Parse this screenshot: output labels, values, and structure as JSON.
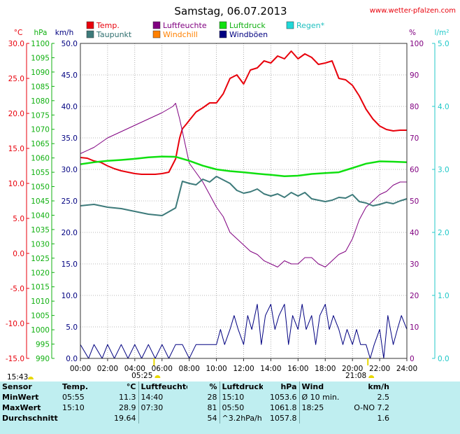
{
  "header": {
    "title": "Samstag, 06.07.2013",
    "site": "www.wetter-pfalzen.com"
  },
  "legend": [
    {
      "label": "Temp.",
      "color": "#e8000b"
    },
    {
      "label": "Luftfeuchte",
      "color": "#800080"
    },
    {
      "label": "Luftdruck",
      "color": "#10e010"
    },
    {
      "label": "Regen*",
      "color": "#20d8d8"
    },
    {
      "label": "Taupunkt",
      "color": "#3d7a7a"
    },
    {
      "label": "Windchill",
      "color": "#ff8000"
    },
    {
      "label": "Windböen",
      "color": "#000080"
    }
  ],
  "axes": {
    "temp": {
      "unit": "°C",
      "color": "#e8000b",
      "ticks": [
        "30.0",
        "25.0",
        "20.0",
        "15.0",
        "10.0",
        "5.0",
        "0.0",
        "-5.0",
        "-10.0",
        "-15.0"
      ]
    },
    "press": {
      "unit": "hPa",
      "color": "#10b010",
      "ticks": [
        "1100",
        "1095",
        "1090",
        "1085",
        "1080",
        "1075",
        "1070",
        "1065",
        "1060",
        "1055",
        "1050",
        "1045",
        "1040",
        "1035",
        "1030",
        "1025",
        "1020",
        "1015",
        "1010",
        "1005",
        "1000",
        "995",
        "990"
      ]
    },
    "wind": {
      "unit": "km/h",
      "color": "#000080",
      "ticks": [
        "50.0",
        "45.0",
        "40.0",
        "35.0",
        "30.0",
        "25.0",
        "20.0",
        "15.0",
        "10.0",
        "5.0",
        "0.0"
      ]
    },
    "hum": {
      "unit": "%",
      "color": "#800080",
      "ticks": [
        "100",
        "90",
        "80",
        "70",
        "60",
        "50",
        "40",
        "30",
        "20",
        "10",
        "0"
      ]
    },
    "rain": {
      "unit": "l/m²",
      "color": "#20c8c8",
      "ticks": [
        "5.0",
        "4.0",
        "3.0",
        "2.0",
        "1.0",
        "0.0"
      ]
    },
    "time": {
      "ticks": [
        "00:00",
        "02:00",
        "04:00",
        "06:00",
        "08:00",
        "10:00",
        "12:00",
        "14:00",
        "16:00",
        "18:00",
        "20:00",
        "22:00",
        "24:00"
      ]
    }
  },
  "sun": {
    "sunrise": "05:25",
    "sunset": "21:08",
    "marker_left": "15:43"
  },
  "chart_data": {
    "type": "line",
    "title": "Samstag, 06.07.2013",
    "x_unit": "hours",
    "xlim": [
      0,
      24
    ],
    "series": [
      {
        "name": "Temp.",
        "axis": "temp",
        "ylim": [
          -15,
          30
        ],
        "x": [
          0,
          0.5,
          1,
          1.5,
          2,
          2.5,
          3,
          3.5,
          4,
          4.5,
          5,
          5.5,
          6,
          6.5,
          7,
          7.3,
          7.5,
          7.8,
          8,
          8.5,
          9,
          9.5,
          10,
          10.5,
          11,
          11.5,
          12,
          12.5,
          13,
          13.5,
          14,
          14.5,
          15,
          15.5,
          16,
          16.5,
          17,
          17.5,
          18,
          18.5,
          19,
          19.5,
          20,
          20.5,
          21,
          21.5,
          22,
          22.5,
          23,
          23.5,
          24
        ],
        "values": [
          13.7,
          13.6,
          13.2,
          13.0,
          12.5,
          12.1,
          11.8,
          11.6,
          11.4,
          11.3,
          11.3,
          11.3,
          11.4,
          11.6,
          13.5,
          16.5,
          17.8,
          18.5,
          19.0,
          20.2,
          20.8,
          21.5,
          21.5,
          22.8,
          25.0,
          25.5,
          24.2,
          26.2,
          26.5,
          27.5,
          27.2,
          28.2,
          27.8,
          28.9,
          27.8,
          28.5,
          28.0,
          27.0,
          27.2,
          27.5,
          25.0,
          24.8,
          24.0,
          22.5,
          20.6,
          19.2,
          18.2,
          17.7,
          17.5,
          17.6,
          17.6
        ]
      },
      {
        "name": "Luftfeuchte",
        "axis": "hum",
        "ylim": [
          0,
          100
        ],
        "x": [
          0,
          1,
          2,
          3,
          4,
          5,
          6,
          6.8,
          7,
          7.3,
          7.6,
          8,
          8.5,
          9,
          9.5,
          10,
          10.5,
          11,
          11.5,
          12,
          12.5,
          13,
          13.5,
          14,
          14.5,
          15,
          15.5,
          16,
          16.5,
          17,
          17.5,
          18,
          18.5,
          19,
          19.5,
          20,
          20.5,
          21,
          21.5,
          22,
          22.5,
          23,
          23.5,
          24
        ],
        "values": [
          65,
          67,
          70,
          72,
          74,
          76,
          78,
          80,
          81,
          76,
          70,
          62,
          59,
          56,
          52,
          48,
          45,
          40,
          38,
          36,
          34,
          33,
          31,
          30,
          29,
          31,
          30,
          30,
          32,
          32,
          30,
          29,
          31,
          33,
          34,
          38,
          44,
          48,
          50,
          52,
          53,
          55,
          56,
          56
        ]
      },
      {
        "name": "Taupunkt",
        "axis": "temp",
        "ylim": [
          -15,
          30
        ],
        "x": [
          0,
          1,
          2,
          3,
          4,
          5,
          6,
          7,
          7.5,
          8,
          8.5,
          9,
          9.5,
          10,
          10.5,
          11,
          11.5,
          12,
          12.5,
          13,
          13.5,
          14,
          14.5,
          15,
          15.5,
          16,
          16.5,
          17,
          17.5,
          18,
          18.5,
          19,
          19.5,
          20,
          20.5,
          21,
          21.5,
          22,
          22.5,
          23,
          23.5,
          24
        ],
        "values": [
          6.8,
          7.0,
          6.6,
          6.4,
          6.0,
          5.6,
          5.4,
          6.5,
          10.3,
          10.0,
          9.8,
          10.6,
          10.2,
          11.0,
          10.5,
          10.0,
          9.0,
          8.6,
          8.8,
          9.2,
          8.5,
          8.2,
          8.5,
          8.0,
          8.7,
          8.2,
          8.7,
          7.8,
          7.6,
          7.4,
          7.6,
          8.0,
          7.9,
          8.4,
          7.4,
          7.2,
          6.8,
          7.0,
          7.3,
          7.1,
          7.5,
          7.8
        ]
      },
      {
        "name": "Luftdruck",
        "axis": "press",
        "ylim": [
          990,
          1100
        ],
        "x": [
          0,
          1,
          2,
          3,
          4,
          5,
          6,
          7,
          8,
          9,
          10,
          11,
          12,
          13,
          14,
          15,
          16,
          17,
          18,
          19,
          20,
          21,
          22,
          23,
          24
        ],
        "values": [
          1057.8,
          1058.5,
          1059.0,
          1059.3,
          1059.7,
          1060.2,
          1060.5,
          1060.4,
          1059.0,
          1057.3,
          1056.0,
          1055.4,
          1055.0,
          1054.5,
          1054.1,
          1053.6,
          1053.8,
          1054.4,
          1054.7,
          1055.0,
          1056.5,
          1058.0,
          1058.8,
          1058.7,
          1058.5
        ]
      },
      {
        "name": "Windböen",
        "axis": "wind",
        "ylim": [
          0,
          50
        ],
        "x": [
          0,
          0.6,
          1,
          1.6,
          2,
          2.5,
          3,
          3.5,
          4,
          4.5,
          5,
          5.5,
          6,
          6.5,
          7,
          7.5,
          8,
          8.5,
          9,
          9.5,
          10,
          10.3,
          10.6,
          11,
          11.3,
          11.6,
          12,
          12.3,
          12.6,
          13,
          13.3,
          13.6,
          14,
          14.3,
          14.6,
          15,
          15.3,
          15.6,
          16,
          16.3,
          16.6,
          17,
          17.3,
          17.6,
          18,
          18.3,
          18.6,
          19,
          19.3,
          19.6,
          20,
          20.3,
          20.6,
          21,
          21.3,
          21.6,
          22,
          22.3,
          22.6,
          23,
          23.3,
          23.6,
          24
        ],
        "values": [
          2.2,
          0.0,
          2.2,
          0.0,
          2.2,
          0.0,
          2.2,
          0.0,
          2.2,
          0.0,
          2.2,
          0.0,
          2.2,
          0.0,
          2.2,
          2.2,
          0.0,
          2.2,
          2.2,
          2.2,
          2.2,
          4.6,
          2.2,
          4.6,
          6.8,
          4.6,
          2.2,
          6.8,
          4.6,
          8.6,
          2.2,
          6.8,
          8.6,
          4.6,
          6.8,
          8.6,
          2.2,
          6.8,
          4.6,
          8.6,
          4.6,
          6.8,
          2.2,
          6.8,
          8.6,
          4.6,
          6.8,
          4.6,
          2.2,
          4.6,
          2.2,
          4.6,
          2.2,
          2.2,
          0.0,
          2.2,
          4.6,
          0.0,
          6.8,
          2.2,
          4.6,
          6.8,
          4.6
        ]
      }
    ]
  },
  "stats": {
    "header": [
      "Sensor",
      "Temp.",
      "°C",
      "Luftfeuchte",
      "%",
      "Luftdruck",
      "hPa",
      "Wind",
      "km/h"
    ],
    "rows": [
      {
        "label": "MinWert",
        "t_time": "05:55",
        "t_val": "11.3",
        "h_time": "14:40",
        "h_val": "28",
        "p_time": "15:10",
        "p_val": "1053.6",
        "w_lbl": "Ø 10 min.",
        "w_val": "2.5"
      },
      {
        "label": "MaxWert",
        "t_time": "15:10",
        "t_val": "28.9",
        "h_time": "07:30",
        "h_val": "81",
        "p_time": "05:50",
        "p_val": "1061.8",
        "w_lbl": "18:25",
        "w_val": "O-NO 7.2"
      },
      {
        "label": "Durchschnitt",
        "t_time": "",
        "t_val": "19.64",
        "h_time": "",
        "h_val": "54",
        "p_time": "^3.2hPa/h",
        "p_val": "1057.8",
        "w_lbl": "",
        "w_val": "1.6"
      }
    ]
  }
}
